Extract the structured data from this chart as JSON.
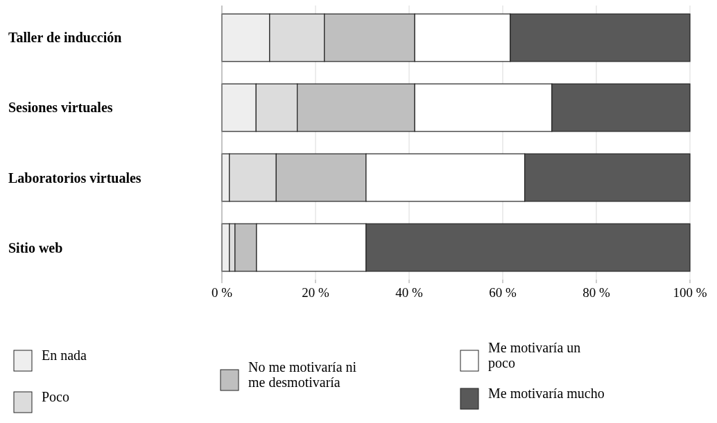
{
  "chart_data": {
    "type": "bar",
    "orientation": "horizontal",
    "stacked": true,
    "categories": [
      "Taller de inducción",
      "Sesiones virtuales",
      "Laboratorios virtuales",
      "Sitio web"
    ],
    "series": [
      {
        "name": "En nada",
        "color": "#eeeeee",
        "values": [
          10.2,
          7.3,
          1.6,
          1.6
        ]
      },
      {
        "name": "Poco",
        "color": "#dcdcdc",
        "values": [
          11.7,
          8.8,
          10,
          1.2
        ]
      },
      {
        "name": "No me motivaría ni me desmotivaría",
        "color": "#bfbfbf",
        "values": [
          19.3,
          25.1,
          19.2,
          4.6
        ]
      },
      {
        "name": "Me motivaría un poco",
        "color": "#ffffff",
        "values": [
          20.4,
          29.3,
          33.9,
          23.4
        ]
      },
      {
        "name": "Me motivaría mucho",
        "color": "#595959",
        "values": [
          38.4,
          29.5,
          35.3,
          69.2
        ]
      }
    ],
    "xlim": [
      0,
      100
    ],
    "xticks": [
      {
        "value": 0,
        "label": "0 %"
      },
      {
        "value": 20,
        "label": "20 %"
      },
      {
        "value": 40,
        "label": "40 %"
      },
      {
        "value": 60,
        "label": "60 %"
      },
      {
        "value": 80,
        "label": "80 %"
      },
      {
        "value": 100,
        "label": "100 %"
      }
    ],
    "grid": "x",
    "legend": "bottom"
  }
}
